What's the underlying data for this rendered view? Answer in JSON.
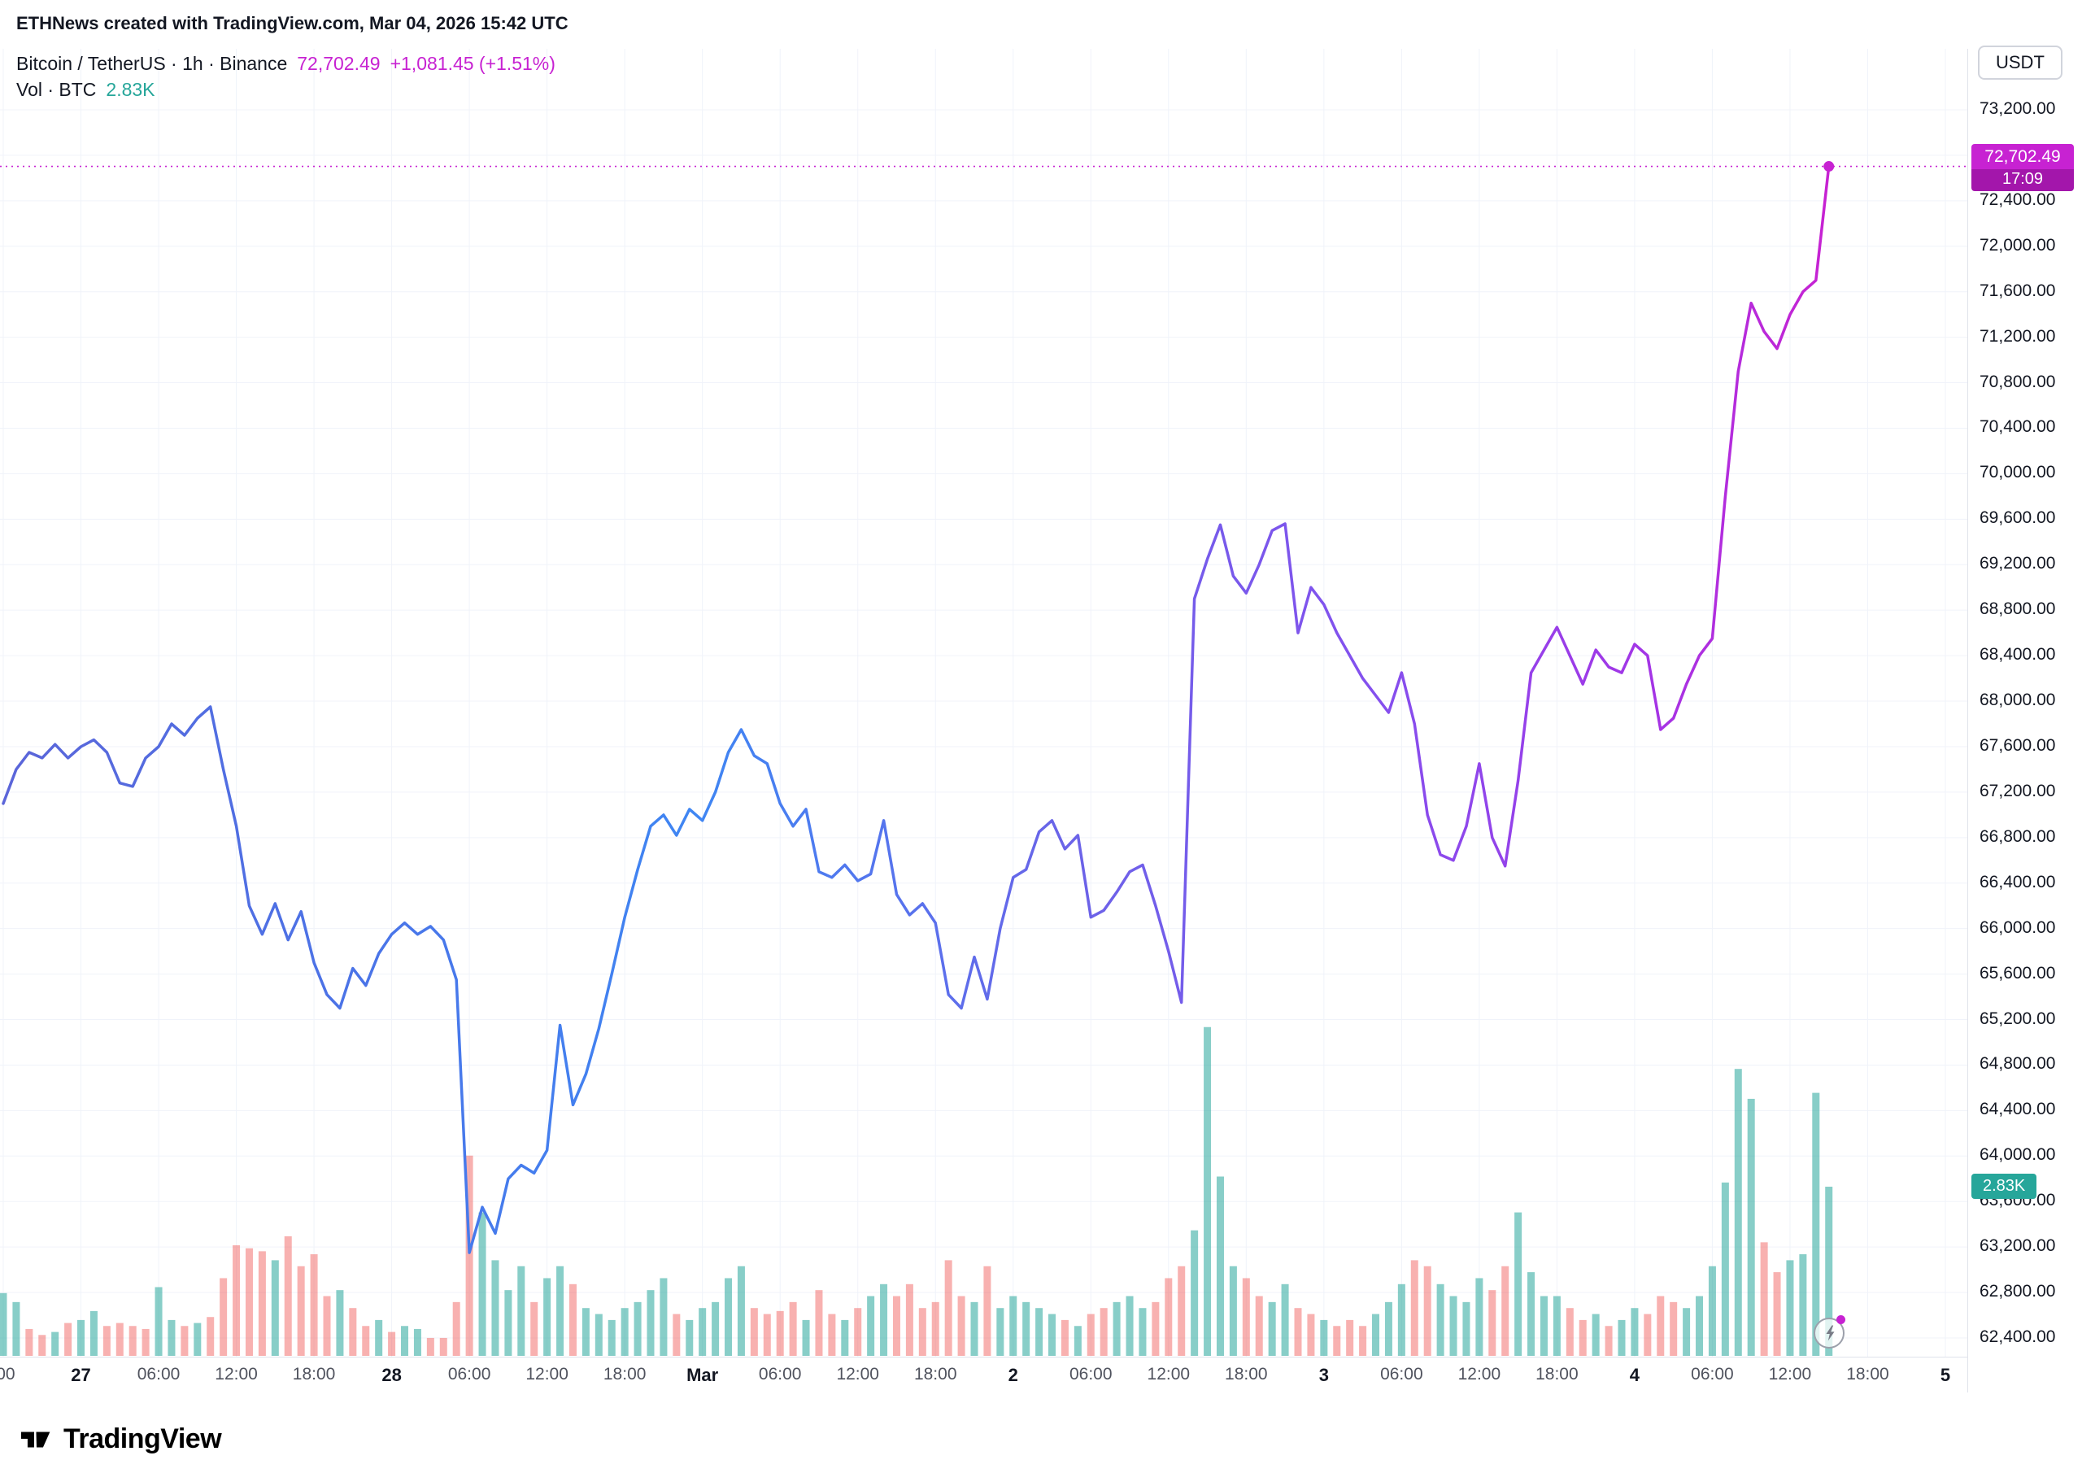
{
  "attribution": "ETHNews created with TradingView.com, Mar 04, 2026 15:42 UTC",
  "legend": {
    "symbol": "Bitcoin / TetherUS · 1h · Binance",
    "price": "72,702.49",
    "change": "+1,081.45 (+1.51%)",
    "vol_label": "Vol · BTC",
    "vol_value": "2.83K"
  },
  "price_axis": {
    "currency": "USDT",
    "last_price_label": "72,702.49",
    "last_price_time": "17:09",
    "volume_label": "2.83K",
    "ticks": [
      "73,200.00",
      "72,800.00",
      "72,400.00",
      "72,000.00",
      "71,600.00",
      "71,200.00",
      "70,800.00",
      "70,400.00",
      "70,000.00",
      "69,600.00",
      "69,200.00",
      "68,800.00",
      "68,400.00",
      "68,000.00",
      "67,600.00",
      "67,200.00",
      "66,800.00",
      "66,400.00",
      "66,000.00",
      "65,600.00",
      "65,200.00",
      "64,800.00",
      "64,400.00",
      "64,000.00",
      "63,600.00",
      "63,200.00",
      "62,800.00",
      "62,400.00"
    ]
  },
  "time_axis": {
    "labels": [
      {
        "t": ":00",
        "i": 0,
        "m": 0
      },
      {
        "t": "27",
        "i": 6,
        "m": 1
      },
      {
        "t": "06:00",
        "i": 12,
        "m": 0
      },
      {
        "t": "12:00",
        "i": 18,
        "m": 0
      },
      {
        "t": "18:00",
        "i": 24,
        "m": 0
      },
      {
        "t": "28",
        "i": 30,
        "m": 1
      },
      {
        "t": "06:00",
        "i": 36,
        "m": 0
      },
      {
        "t": "12:00",
        "i": 42,
        "m": 0
      },
      {
        "t": "18:00",
        "i": 48,
        "m": 0
      },
      {
        "t": "Mar",
        "i": 54,
        "m": 1
      },
      {
        "t": "06:00",
        "i": 60,
        "m": 0
      },
      {
        "t": "12:00",
        "i": 66,
        "m": 0
      },
      {
        "t": "18:00",
        "i": 72,
        "m": 0
      },
      {
        "t": "2",
        "i": 78,
        "m": 1
      },
      {
        "t": "06:00",
        "i": 84,
        "m": 0
      },
      {
        "t": "12:00",
        "i": 90,
        "m": 0
      },
      {
        "t": "18:00",
        "i": 96,
        "m": 0
      },
      {
        "t": "3",
        "i": 102,
        "m": 1
      },
      {
        "t": "06:00",
        "i": 108,
        "m": 0
      },
      {
        "t": "12:00",
        "i": 114,
        "m": 0
      },
      {
        "t": "18:00",
        "i": 120,
        "m": 0
      },
      {
        "t": "4",
        "i": 126,
        "m": 1
      },
      {
        "t": "06:00",
        "i": 132,
        "m": 0
      },
      {
        "t": "12:00",
        "i": 138,
        "m": 0
      },
      {
        "t": "18:00",
        "i": 144,
        "m": 0
      },
      {
        "t": "5",
        "i": 150,
        "m": 1
      }
    ]
  },
  "footer": {
    "brand": "TradingView"
  },
  "colors": {
    "accent_magenta": "#c722d2",
    "magenta_dark": "#a316ab",
    "teal": "#26a69a",
    "vol_up": "rgba(38,166,154,0.55)",
    "vol_down": "rgba(239,83,80,0.45)",
    "grid": "#f0f3fa",
    "axis_border": "#e0e3eb",
    "text_primary": "#131722",
    "text_secondary": "#50535e",
    "line_gradient": [
      {
        "offset": 0,
        "color": "#5b65d9"
      },
      {
        "offset": 0.2,
        "color": "#4a74e8"
      },
      {
        "offset": 0.38,
        "color": "#3f86f3"
      },
      {
        "offset": 0.58,
        "color": "#6a64e8"
      },
      {
        "offset": 0.75,
        "color": "#8450ee"
      },
      {
        "offset": 0.9,
        "color": "#a335e6"
      },
      {
        "offset": 1,
        "color": "#c722d2"
      }
    ]
  },
  "chart_data": {
    "type": "line",
    "title": "Bitcoin / TetherUS · 1h · Binance",
    "interval": "1h",
    "hours_per_point": 1,
    "ylim": [
      62400,
      73200
    ],
    "y_tick_step": 400,
    "last_price": 72702.49,
    "last_change": "+1,081.45 (+1.51%)",
    "last_volume_k": 2.83,
    "volume_unit": "K BTC",
    "prices": [
      67100,
      67400,
      67550,
      67500,
      67620,
      67500,
      67600,
      67660,
      67550,
      67280,
      67250,
      67500,
      67600,
      67800,
      67700,
      67850,
      67950,
      67400,
      66900,
      66200,
      65950,
      66220,
      65900,
      66150,
      65700,
      65420,
      65300,
      65650,
      65500,
      65780,
      65950,
      66050,
      65950,
      66020,
      65900,
      65550,
      63150,
      63550,
      63320,
      63800,
      63920,
      63850,
      64050,
      65150,
      64450,
      64720,
      65120,
      65600,
      66100,
      66520,
      66900,
      67000,
      66820,
      67050,
      66950,
      67200,
      67550,
      67750,
      67520,
      67450,
      67100,
      66900,
      67050,
      66500,
      66450,
      66560,
      66420,
      66480,
      66950,
      66300,
      66120,
      66220,
      66050,
      65420,
      65300,
      65750,
      65380,
      66000,
      66450,
      66520,
      66850,
      66950,
      66700,
      66820,
      66100,
      66160,
      66320,
      66500,
      66560,
      66200,
      65800,
      65350,
      68900,
      69250,
      69550,
      69100,
      68950,
      69200,
      69500,
      69560,
      68600,
      69000,
      68850,
      68600,
      68400,
      68200,
      68050,
      67900,
      68250,
      67800,
      67000,
      66650,
      66600,
      66900,
      67450,
      66800,
      66550,
      67300,
      68250,
      68450,
      68650,
      68400,
      68150,
      68450,
      68300,
      68250,
      68500,
      68400,
      67750,
      67850,
      68150,
      68400,
      68550,
      69800,
      70900,
      71500,
      71250,
      71100,
      71400,
      71600,
      71700,
      72702.49
    ],
    "volume": [
      [
        1.05,
        1
      ],
      [
        0.9,
        1
      ],
      [
        0.45,
        0
      ],
      [
        0.35,
        0
      ],
      [
        0.4,
        1
      ],
      [
        0.55,
        0
      ],
      [
        0.6,
        1
      ],
      [
        0.75,
        1
      ],
      [
        0.5,
        0
      ],
      [
        0.55,
        0
      ],
      [
        0.5,
        0
      ],
      [
        0.45,
        0
      ],
      [
        1.15,
        1
      ],
      [
        0.6,
        1
      ],
      [
        0.5,
        0
      ],
      [
        0.55,
        1
      ],
      [
        0.65,
        0
      ],
      [
        1.3,
        0
      ],
      [
        1.85,
        0
      ],
      [
        1.8,
        0
      ],
      [
        1.75,
        0
      ],
      [
        1.6,
        1
      ],
      [
        2.0,
        0
      ],
      [
        1.5,
        0
      ],
      [
        1.7,
        0
      ],
      [
        1.0,
        0
      ],
      [
        1.1,
        1
      ],
      [
        0.8,
        0
      ],
      [
        0.5,
        0
      ],
      [
        0.6,
        1
      ],
      [
        0.4,
        0
      ],
      [
        0.5,
        1
      ],
      [
        0.45,
        1
      ],
      [
        0.3,
        0
      ],
      [
        0.3,
        0
      ],
      [
        0.9,
        0
      ],
      [
        3.35,
        0
      ],
      [
        2.4,
        1
      ],
      [
        1.6,
        1
      ],
      [
        1.1,
        1
      ],
      [
        1.5,
        1
      ],
      [
        0.9,
        0
      ],
      [
        1.3,
        1
      ],
      [
        1.5,
        1
      ],
      [
        1.2,
        0
      ],
      [
        0.8,
        1
      ],
      [
        0.7,
        1
      ],
      [
        0.6,
        1
      ],
      [
        0.8,
        1
      ],
      [
        0.9,
        1
      ],
      [
        1.1,
        1
      ],
      [
        1.3,
        1
      ],
      [
        0.7,
        0
      ],
      [
        0.6,
        1
      ],
      [
        0.8,
        1
      ],
      [
        0.9,
        1
      ],
      [
        1.3,
        1
      ],
      [
        1.5,
        1
      ],
      [
        0.8,
        0
      ],
      [
        0.7,
        0
      ],
      [
        0.75,
        0
      ],
      [
        0.9,
        0
      ],
      [
        0.6,
        1
      ],
      [
        1.1,
        0
      ],
      [
        0.7,
        0
      ],
      [
        0.6,
        1
      ],
      [
        0.8,
        0
      ],
      [
        1.0,
        1
      ],
      [
        1.2,
        1
      ],
      [
        1.0,
        0
      ],
      [
        1.2,
        0
      ],
      [
        0.8,
        0
      ],
      [
        0.9,
        0
      ],
      [
        1.6,
        0
      ],
      [
        1.0,
        0
      ],
      [
        0.9,
        1
      ],
      [
        1.5,
        0
      ],
      [
        0.8,
        1
      ],
      [
        1.0,
        1
      ],
      [
        0.9,
        1
      ],
      [
        0.8,
        1
      ],
      [
        0.7,
        1
      ],
      [
        0.6,
        0
      ],
      [
        0.5,
        1
      ],
      [
        0.7,
        0
      ],
      [
        0.8,
        0
      ],
      [
        0.9,
        1
      ],
      [
        1.0,
        1
      ],
      [
        0.8,
        1
      ],
      [
        0.9,
        0
      ],
      [
        1.3,
        0
      ],
      [
        1.5,
        0
      ],
      [
        2.1,
        1
      ],
      [
        5.5,
        1
      ],
      [
        3.0,
        1
      ],
      [
        1.5,
        1
      ],
      [
        1.3,
        0
      ],
      [
        1.0,
        0
      ],
      [
        0.9,
        1
      ],
      [
        1.2,
        1
      ],
      [
        0.8,
        0
      ],
      [
        0.7,
        0
      ],
      [
        0.6,
        1
      ],
      [
        0.5,
        0
      ],
      [
        0.6,
        0
      ],
      [
        0.5,
        0
      ],
      [
        0.7,
        1
      ],
      [
        0.9,
        1
      ],
      [
        1.2,
        1
      ],
      [
        1.6,
        0
      ],
      [
        1.5,
        0
      ],
      [
        1.2,
        1
      ],
      [
        1.0,
        1
      ],
      [
        0.9,
        1
      ],
      [
        1.3,
        1
      ],
      [
        1.1,
        0
      ],
      [
        1.5,
        0
      ],
      [
        2.4,
        1
      ],
      [
        1.4,
        1
      ],
      [
        1.0,
        1
      ],
      [
        1.0,
        1
      ],
      [
        0.8,
        0
      ],
      [
        0.6,
        0
      ],
      [
        0.7,
        1
      ],
      [
        0.5,
        0
      ],
      [
        0.6,
        1
      ],
      [
        0.8,
        1
      ],
      [
        0.7,
        0
      ],
      [
        1.0,
        0
      ],
      [
        0.9,
        0
      ],
      [
        0.8,
        1
      ],
      [
        1.0,
        1
      ],
      [
        1.5,
        1
      ],
      [
        2.9,
        1
      ],
      [
        4.8,
        1
      ],
      [
        4.3,
        1
      ],
      [
        1.9,
        0
      ],
      [
        1.4,
        0
      ],
      [
        1.6,
        1
      ],
      [
        1.7,
        1
      ],
      [
        4.4,
        1
      ],
      [
        2.83,
        1
      ]
    ]
  }
}
